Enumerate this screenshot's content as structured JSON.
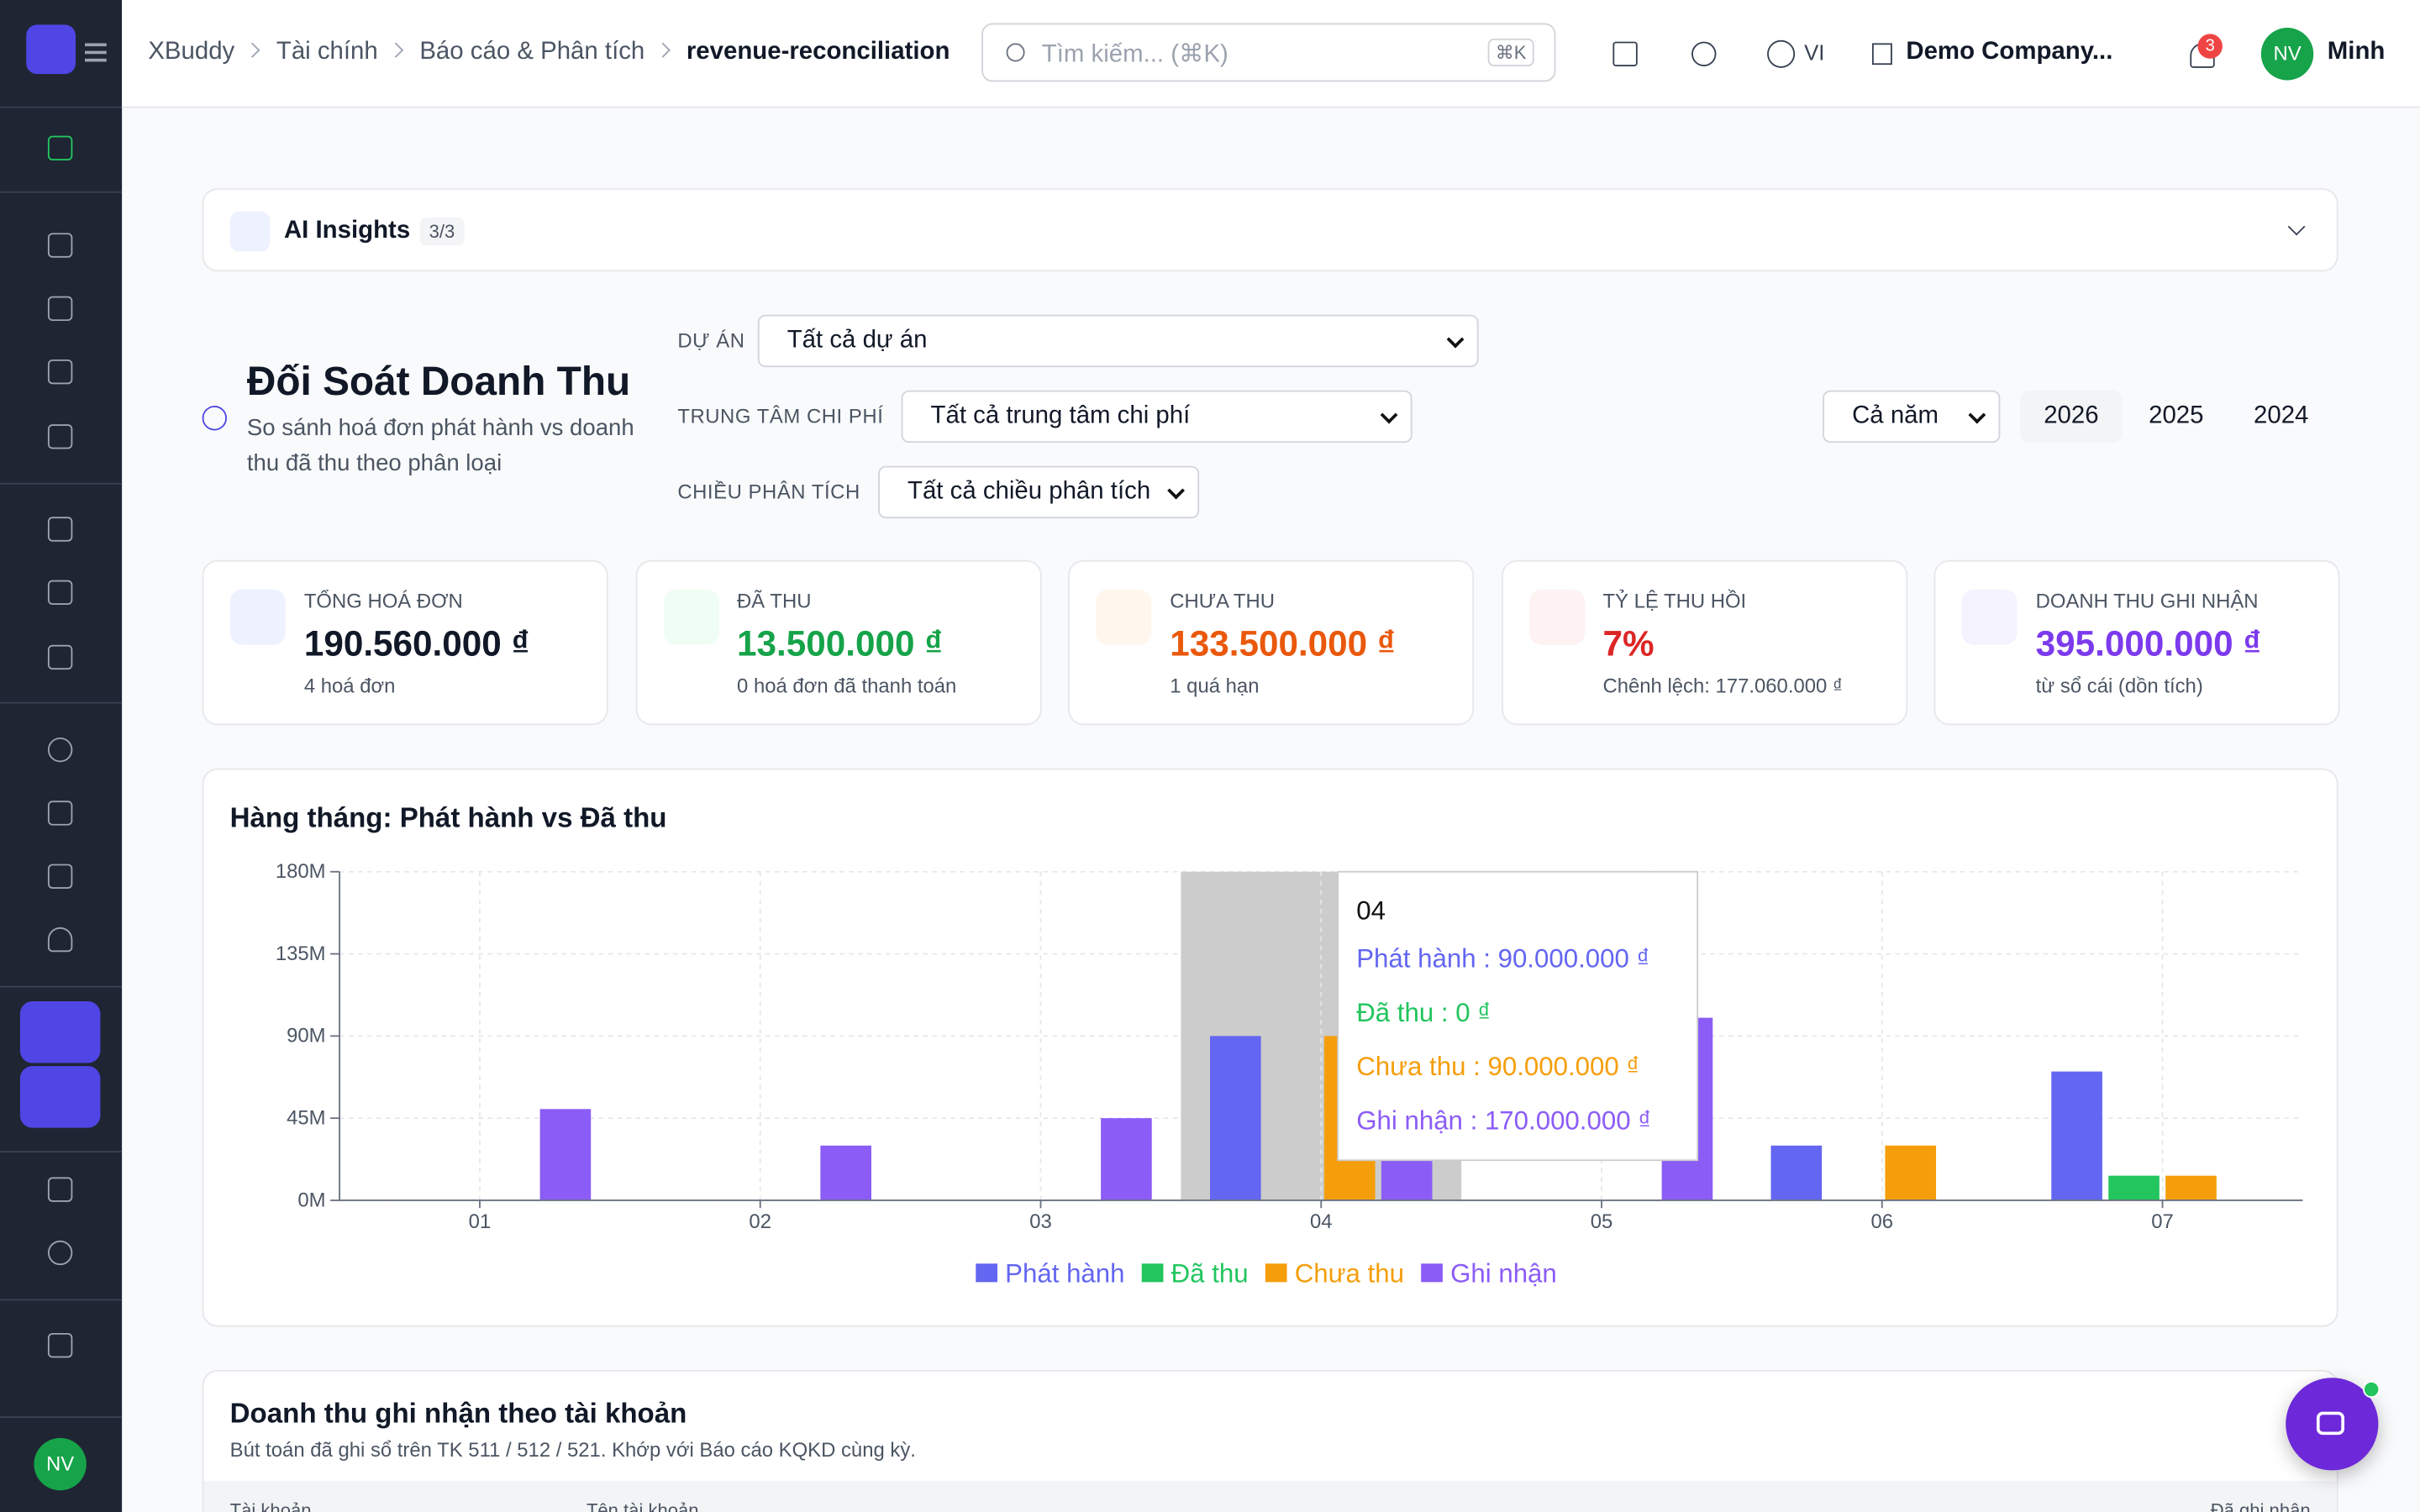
{
  "breadcrumb": [
    "XBuddy",
    "Tài chính",
    "Báo cáo & Phân tích",
    "revenue-reconciliation"
  ],
  "search": {
    "placeholder": "Tìm kiếm... (⌘K)",
    "shortcut": "⌘K"
  },
  "topbar": {
    "language": "VI",
    "company": "Demo Company...",
    "notifications": "3",
    "avatar": "NV",
    "user": "Minh"
  },
  "sidebar": {
    "avatar": "NV"
  },
  "insights": {
    "title": "AI Insights",
    "count": "3/3"
  },
  "page": {
    "title": "Đối Soát Doanh Thu",
    "subtitle": "So sánh hoá đơn phát hành vs doanh thu đã thu theo phân loại"
  },
  "filters": [
    {
      "label": "DỰ ÁN",
      "value": "Tất cả dự án"
    },
    {
      "label": "TRUNG TÂM CHI PHÍ",
      "value": "Tất cả trung tâm chi phí"
    },
    {
      "label": "CHIỀU PHÂN TÍCH",
      "value": "Tất cả chiều phân tích"
    }
  ],
  "period": {
    "select": "Cả năm",
    "years": [
      "2026",
      "2025",
      "2024"
    ]
  },
  "kpis": [
    {
      "label": "TỔNG HOÁ ĐƠN",
      "value": "190.560.000 ₫",
      "note": "4 hoá đơn",
      "color": "#111827"
    },
    {
      "label": "ĐÃ THU",
      "value": "13.500.000 ₫",
      "note": "0 hoá đơn đã thanh toán",
      "color": "#16a34a"
    },
    {
      "label": "CHƯA THU",
      "value": "133.500.000 ₫",
      "note": "1 quá hạn",
      "color": "#ea580c"
    },
    {
      "label": "TỶ LỆ THU HỒI",
      "value": "7%",
      "note": "Chênh lệch: 177.060.000 ₫",
      "color": "#dc2626"
    },
    {
      "label": "DOANH THU GHI NHẬN",
      "value": "395.000.000 ₫",
      "note": "từ sổ cái (dồn tích)",
      "color": "#7c3aed"
    }
  ],
  "chart_data": {
    "type": "bar",
    "title": "Hàng tháng: Phát hành vs Đã thu",
    "categories": [
      "01",
      "02",
      "03",
      "04",
      "05",
      "06",
      "07"
    ],
    "series": [
      {
        "name": "Phát hành",
        "color": "#6366f1",
        "values": [
          0,
          0,
          0,
          90000000,
          0,
          30000000,
          70560000
        ]
      },
      {
        "name": "Đã thu",
        "color": "#22c55e",
        "values": [
          0,
          0,
          0,
          0,
          0,
          0,
          13500000
        ]
      },
      {
        "name": "Chưa thu",
        "color": "#f59e0b",
        "values": [
          0,
          0,
          0,
          90000000,
          0,
          30000000,
          13500000
        ]
      },
      {
        "name": "Ghi nhận",
        "color": "#8b5cf6",
        "values": [
          50000000,
          30000000,
          45000000,
          170000000,
          100000000,
          0,
          0
        ]
      }
    ],
    "ylim": [
      0,
      180000000
    ],
    "yticks": [
      {
        "value": 0,
        "label": "0M"
      },
      {
        "value": 45000000,
        "label": "45M"
      },
      {
        "value": 90000000,
        "label": "90M"
      },
      {
        "value": 135000000,
        "label": "135M"
      },
      {
        "value": 180000000,
        "label": "180M"
      }
    ],
    "grid": true,
    "legend": "bottom",
    "tooltip": {
      "title": "04",
      "lines": [
        "Phát hành : 90.000.000 ₫",
        "Đã thu : 0 ₫",
        "Chưa thu : 90.000.000 ₫",
        "Ghi nhận : 170.000.000 ₫"
      ]
    }
  },
  "accounts": {
    "title": "Doanh thu ghi nhận theo tài khoản",
    "subtitle": "Bút toán đã ghi sổ trên TK 511 / 512 / 521. Khớp với Báo cáo KQKD cùng kỳ.",
    "columns": [
      "Tài khoản",
      "Tên tài khoản",
      "Đã ghi nhận"
    ]
  }
}
